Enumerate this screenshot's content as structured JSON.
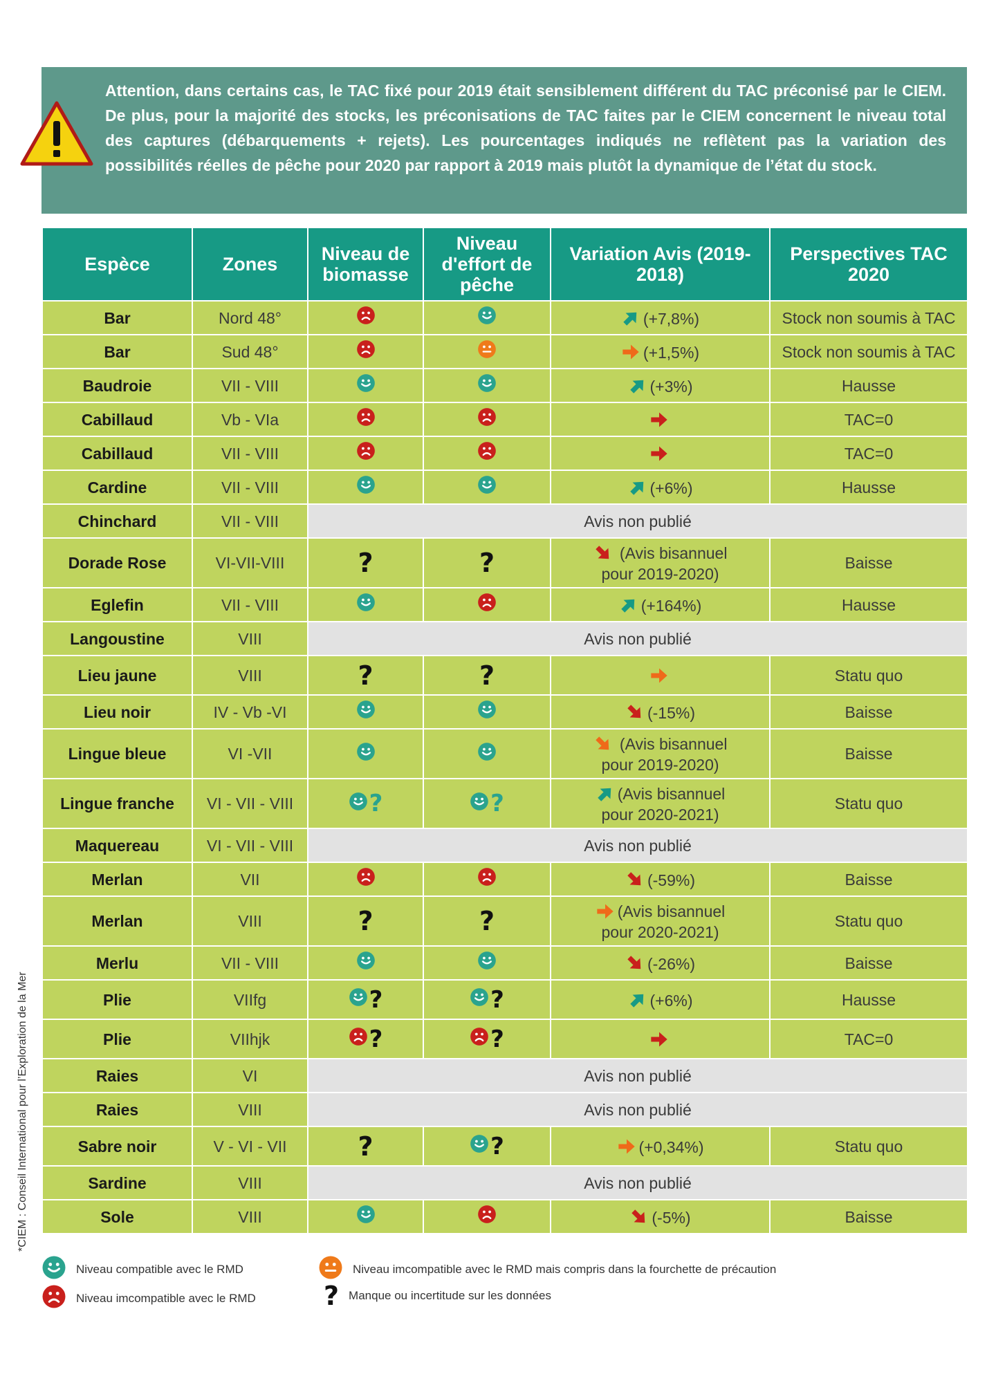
{
  "warning": {
    "icon": "warning-triangle-icon",
    "text": "Attention, dans certains cas, le TAC fixé pour 2019 était sensiblement différent du TAC préconisé par le CIEM. De plus, pour la majorité des stocks, les préconisations de TAC faites par le CIEM concernent le niveau total des captures (débarquements + rejets). Les pourcentages indiqués ne reflètent pas la variation des possibilités réelles de pêche pour 2020 par rapport à 2019 mais plutôt la dynamique de l’état du stock."
  },
  "colors": {
    "header_bg": "#179a85",
    "row_bg": "#bfd45e",
    "nodata_bg": "#e2e2e2",
    "good": "#2aa38e",
    "caution": "#ef7a1a",
    "bad": "#c9201c"
  },
  "table": {
    "headers": [
      "Espèce",
      "Zones",
      "Niveau de biomasse",
      "Niveau d'effort de pêche",
      "Variation Avis (2019-2018)",
      "Perspectives TAC 2020"
    ],
    "rows": [
      {
        "species": "Bar",
        "zone": "Nord 48°",
        "biomass": "bad",
        "effort": "good",
        "arrow": "up",
        "arrow_color": "teal",
        "variation": "(+7,8%)",
        "variation2": "",
        "tac": "Stock non soumis à TAC",
        "tac_color": "plain"
      },
      {
        "species": "Bar",
        "zone": "Sud 48°",
        "biomass": "bad",
        "effort": "caution",
        "arrow": "right",
        "arrow_color": "orange",
        "variation": "(+1,5%)",
        "variation2": "",
        "tac": "Stock non soumis à TAC",
        "tac_color": "plain"
      },
      {
        "species": "Baudroie",
        "zone": "VII - VIII",
        "biomass": "good",
        "effort": "good",
        "arrow": "up",
        "arrow_color": "teal",
        "variation": "(+3%)",
        "variation2": "",
        "tac": "Hausse",
        "tac_color": "teal"
      },
      {
        "species": "Cabillaud",
        "zone": "Vb - VIa",
        "biomass": "bad",
        "effort": "bad",
        "arrow": "right",
        "arrow_color": "red",
        "variation": "",
        "variation2": "",
        "tac": "TAC=0",
        "tac_color": "red"
      },
      {
        "species": "Cabillaud",
        "zone": "VII - VIII",
        "biomass": "bad",
        "effort": "bad",
        "arrow": "right",
        "arrow_color": "red",
        "variation": "",
        "variation2": "",
        "tac": "TAC=0",
        "tac_color": "red"
      },
      {
        "species": "Cardine",
        "zone": "VII - VIII",
        "biomass": "good",
        "effort": "good",
        "arrow": "up",
        "arrow_color": "teal",
        "variation": "(+6%)",
        "variation2": "",
        "tac": "Hausse",
        "tac_color": "teal"
      },
      {
        "species": "Chinchard",
        "zone": "VII - VIII",
        "nodata": "Avis non publié"
      },
      {
        "species": "Dorade Rose",
        "zone": "VI-VII-VIII",
        "biomass": "q",
        "effort": "q",
        "arrow": "down",
        "arrow_color": "red",
        "variation": " (Avis bisannuel",
        "variation2": "pour 2019-2020)",
        "tac": "Baisse",
        "tac_color": "red"
      },
      {
        "species": "Eglefin",
        "zone": "VII - VIII",
        "biomass": "good",
        "effort": "bad",
        "arrow": "up",
        "arrow_color": "teal",
        "variation": "(+164%)",
        "variation2": "",
        "tac": "Hausse",
        "tac_color": "teal"
      },
      {
        "species": "Langoustine",
        "zone": "VIII",
        "nodata": "Avis non publié"
      },
      {
        "species": "Lieu jaune",
        "zone": "VIII",
        "biomass": "q",
        "effort": "q",
        "arrow": "right",
        "arrow_color": "orange",
        "variation": "",
        "variation2": "",
        "tac": "Statu quo",
        "tac_color": "orange"
      },
      {
        "species": "Lieu noir",
        "zone": "IV - Vb -VI",
        "biomass": "good",
        "effort": "good",
        "arrow": "down",
        "arrow_color": "red",
        "variation": "(-15%)",
        "variation2": "",
        "tac": "Baisse",
        "tac_color": "red"
      },
      {
        "species": "Lingue bleue",
        "zone": "VI -VII",
        "biomass": "good",
        "effort": "good",
        "arrow": "down",
        "arrow_color": "orange",
        "variation": " (Avis bisannuel",
        "variation2": "pour 2019-2020)",
        "tac": "Baisse",
        "tac_color": "red"
      },
      {
        "species": "Lingue franche",
        "zone": "VI - VII - VIII",
        "biomass": "good-q-light",
        "effort": "good-q-light",
        "arrow": "up",
        "arrow_color": "teal",
        "variation": "(Avis bisannuel",
        "variation2": "pour 2020-2021)",
        "tac": "Statu quo",
        "tac_color": "orange"
      },
      {
        "species": "Maquereau",
        "zone": "VI - VII - VIII",
        "nodata": "Avis non publié"
      },
      {
        "species": "Merlan",
        "zone": "VII",
        "biomass": "bad",
        "effort": "bad",
        "arrow": "down",
        "arrow_color": "red",
        "variation": "(-59%)",
        "variation2": "",
        "tac": "Baisse",
        "tac_color": "red"
      },
      {
        "species": "Merlan",
        "zone": "VIII",
        "biomass": "q",
        "effort": "q",
        "arrow": "right",
        "arrow_color": "orange",
        "variation": "(Avis bisannuel",
        "variation2": "pour 2020-2021)",
        "tac": "Statu quo",
        "tac_color": "orange"
      },
      {
        "species": "Merlu",
        "zone": "VII - VIII",
        "biomass": "good",
        "effort": "good",
        "arrow": "down",
        "arrow_color": "red",
        "variation": "(-26%)",
        "variation2": "",
        "tac": "Baisse",
        "tac_color": "red"
      },
      {
        "species": "Plie",
        "zone": "VIIfg",
        "biomass": "good-q",
        "effort": "good-q",
        "arrow": "up",
        "arrow_color": "teal",
        "variation": "(+6%)",
        "variation2": "",
        "tac": "Hausse",
        "tac_color": "teal"
      },
      {
        "species": "Plie",
        "zone": "VIIhjk",
        "biomass": "bad-q",
        "effort": "bad-q",
        "arrow": "right",
        "arrow_color": "red",
        "variation": "",
        "variation2": "",
        "tac": "TAC=0",
        "tac_color": "red"
      },
      {
        "species": "Raies",
        "zone": "VI",
        "nodata": "Avis non publié"
      },
      {
        "species": "Raies",
        "zone": "VIII",
        "nodata": "Avis non publié"
      },
      {
        "species": "Sabre noir",
        "zone": "V - VI - VII",
        "biomass": "q",
        "effort": "good-q",
        "arrow": "right",
        "arrow_color": "orange",
        "variation": "(+0,34%)",
        "variation2": "",
        "tac": "Statu quo",
        "tac_color": "orange"
      },
      {
        "species": "Sardine",
        "zone": "VIII",
        "nodata": "Avis non publié"
      },
      {
        "species": "Sole",
        "zone": "VIII",
        "biomass": "good",
        "effort": "bad",
        "arrow": "down",
        "arrow_color": "red",
        "variation": "(-5%)",
        "variation2": "",
        "tac": "Baisse",
        "tac_color": "red"
      }
    ]
  },
  "legend": {
    "good": "Niveau compatible avec le RMD",
    "caution": "Niveau imcompatible avec le RMD mais compris dans la fourchette de précaution",
    "bad": "Niveau imcompatible avec le RMD",
    "unknown": "Manque ou incertitude sur les données"
  },
  "footnote": "*CIEM : Conseil International pour l’Exploration de la Mer"
}
